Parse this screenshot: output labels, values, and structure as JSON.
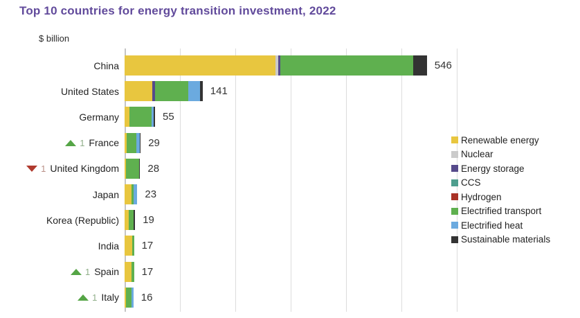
{
  "title": "Top 10 countries for energy transition investment, 2022",
  "title_color": "#614a9b",
  "unit_label": "$ billion",
  "chart_data": {
    "type": "bar",
    "orientation": "horizontal",
    "stacked": true,
    "title": "Top 10 countries for energy transition investment, 2022",
    "xlabel": "$ billion",
    "ylabel": "",
    "xlim": [
      0,
      600
    ],
    "gridline_step": 100,
    "grid": true,
    "legend_position": "right",
    "series_colors": {
      "Renewable energy": "#e8c63f",
      "Nuclear": "#cbcbcb",
      "Energy storage": "#564a8b",
      "CCS": "#4e9e8e",
      "Hydrogen": "#a93226",
      "Electrified transport": "#5fb04f",
      "Electrified heat": "#6baadf",
      "Sustainable materials": "#333333"
    },
    "legend": [
      {
        "name": "Renewable energy"
      },
      {
        "name": "Nuclear"
      },
      {
        "name": "Energy storage"
      },
      {
        "name": "CCS"
      },
      {
        "name": "Hydrogen"
      },
      {
        "name": "Electrified transport"
      },
      {
        "name": "Electrified heat"
      },
      {
        "name": "Sustainable materials"
      }
    ],
    "rows": [
      {
        "country": "China",
        "total": 546,
        "rank_change": null,
        "segments": [
          [
            "Renewable energy",
            272
          ],
          [
            "Nuclear",
            5
          ],
          [
            "Energy storage",
            4
          ],
          [
            "Electrified transport",
            240
          ],
          [
            "Sustainable materials",
            25
          ]
        ]
      },
      {
        "country": "United States",
        "total": 141,
        "rank_change": null,
        "segments": [
          [
            "Renewable energy",
            50
          ],
          [
            "Energy storage",
            5
          ],
          [
            "Electrified transport",
            60
          ],
          [
            "Electrified heat",
            21
          ],
          [
            "Sustainable materials",
            5
          ]
        ]
      },
      {
        "country": "Germany",
        "total": 55,
        "rank_change": null,
        "segments": [
          [
            "Renewable energy",
            9
          ],
          [
            "Electrified transport",
            40
          ],
          [
            "Electrified heat",
            4
          ],
          [
            "Sustainable materials",
            2
          ]
        ]
      },
      {
        "country": "France",
        "total": 29,
        "rank_change": {
          "direction": "up",
          "amount": "1"
        },
        "segments": [
          [
            "Renewable energy",
            4
          ],
          [
            "Electrified transport",
            17
          ],
          [
            "Electrified heat",
            7
          ],
          [
            "Sustainable materials",
            1
          ]
        ]
      },
      {
        "country": "United Kingdom",
        "total": 28,
        "rank_change": {
          "direction": "down",
          "amount": "1"
        },
        "segments": [
          [
            "Renewable energy",
            2
          ],
          [
            "Electrified transport",
            24
          ],
          [
            "Sustainable materials",
            2
          ]
        ]
      },
      {
        "country": "Japan",
        "total": 23,
        "rank_change": null,
        "segments": [
          [
            "Renewable energy",
            12
          ],
          [
            "Electrified transport",
            4
          ],
          [
            "Electrified heat",
            7
          ]
        ]
      },
      {
        "country": "Korea (Republic)",
        "total": 19,
        "rank_change": null,
        "segments": [
          [
            "Renewable energy",
            8
          ],
          [
            "Electrified transport",
            8
          ],
          [
            "Sustainable materials",
            3
          ]
        ]
      },
      {
        "country": "India",
        "total": 17,
        "rank_change": null,
        "segments": [
          [
            "Renewable energy",
            14
          ],
          [
            "Electrified transport",
            3
          ]
        ]
      },
      {
        "country": "Spain",
        "total": 17,
        "rank_change": {
          "direction": "up",
          "amount": "1"
        },
        "segments": [
          [
            "Renewable energy",
            13
          ],
          [
            "Electrified transport",
            4
          ]
        ]
      },
      {
        "country": "Italy",
        "total": 16,
        "rank_change": {
          "direction": "up",
          "amount": "1"
        },
        "segments": [
          [
            "Renewable energy",
            3
          ],
          [
            "Electrified transport",
            9
          ],
          [
            "Electrified heat",
            4
          ]
        ]
      }
    ]
  }
}
